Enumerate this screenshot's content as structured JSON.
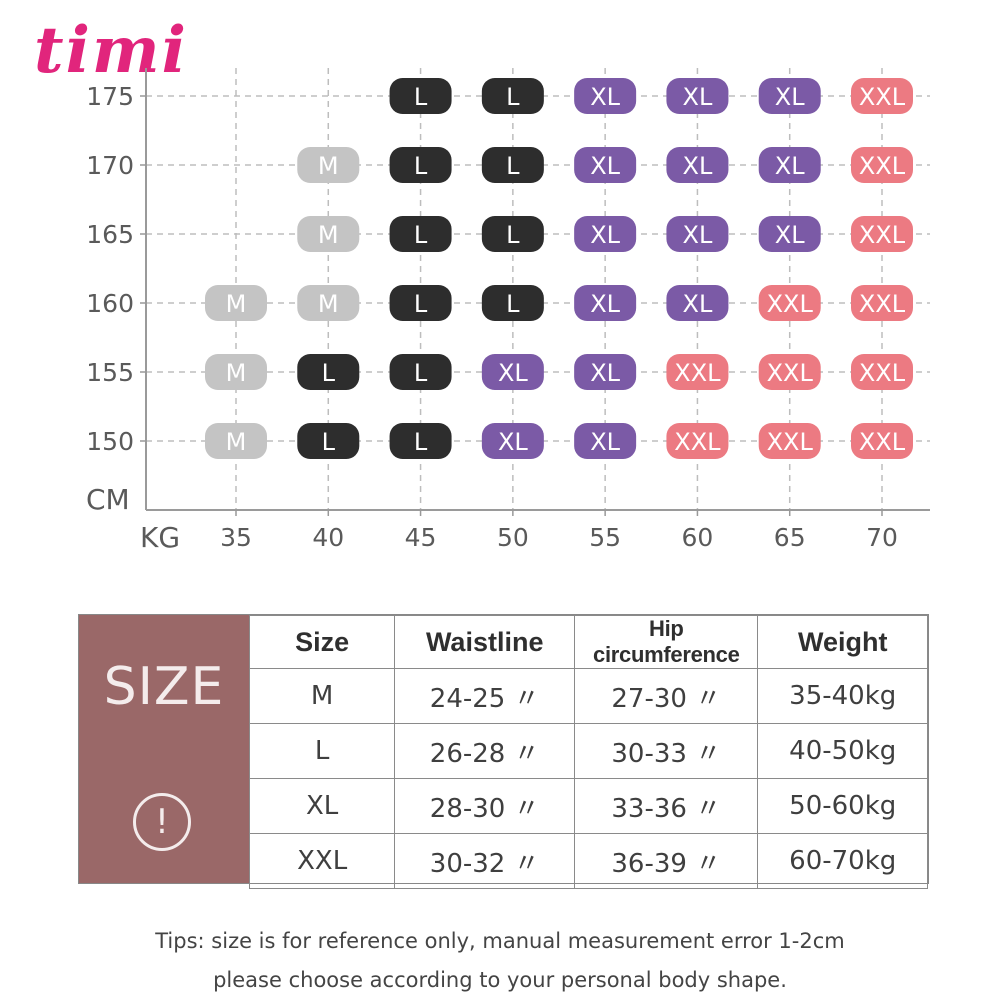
{
  "brand": {
    "logo_text": "timi",
    "color": "#e1257c"
  },
  "chart_data": {
    "type": "table",
    "y_unit": "CM",
    "x_unit": "KG",
    "y_values": [
      175,
      170,
      165,
      160,
      155,
      150
    ],
    "x_values": [
      35,
      40,
      45,
      50,
      55,
      60,
      65,
      70
    ],
    "size_colors": {
      "M": "#c4c4c4",
      "L": "#2d2d2d",
      "XL": "#7b5aa6",
      "XXL": "#ec7a82"
    },
    "cells": [
      {
        "cm": 175,
        "kg": 45,
        "size": "L"
      },
      {
        "cm": 175,
        "kg": 50,
        "size": "L"
      },
      {
        "cm": 175,
        "kg": 55,
        "size": "XL"
      },
      {
        "cm": 175,
        "kg": 60,
        "size": "XL"
      },
      {
        "cm": 175,
        "kg": 65,
        "size": "XL"
      },
      {
        "cm": 175,
        "kg": 70,
        "size": "XXL"
      },
      {
        "cm": 170,
        "kg": 40,
        "size": "M"
      },
      {
        "cm": 170,
        "kg": 45,
        "size": "L"
      },
      {
        "cm": 170,
        "kg": 50,
        "size": "L"
      },
      {
        "cm": 170,
        "kg": 55,
        "size": "XL"
      },
      {
        "cm": 170,
        "kg": 60,
        "size": "XL"
      },
      {
        "cm": 170,
        "kg": 65,
        "size": "XL"
      },
      {
        "cm": 170,
        "kg": 70,
        "size": "XXL"
      },
      {
        "cm": 165,
        "kg": 40,
        "size": "M"
      },
      {
        "cm": 165,
        "kg": 45,
        "size": "L"
      },
      {
        "cm": 165,
        "kg": 50,
        "size": "L"
      },
      {
        "cm": 165,
        "kg": 55,
        "size": "XL"
      },
      {
        "cm": 165,
        "kg": 60,
        "size": "XL"
      },
      {
        "cm": 165,
        "kg": 65,
        "size": "XL"
      },
      {
        "cm": 165,
        "kg": 70,
        "size": "XXL"
      },
      {
        "cm": 160,
        "kg": 35,
        "size": "M"
      },
      {
        "cm": 160,
        "kg": 40,
        "size": "M"
      },
      {
        "cm": 160,
        "kg": 45,
        "size": "L"
      },
      {
        "cm": 160,
        "kg": 50,
        "size": "L"
      },
      {
        "cm": 160,
        "kg": 55,
        "size": "XL"
      },
      {
        "cm": 160,
        "kg": 60,
        "size": "XL"
      },
      {
        "cm": 160,
        "kg": 65,
        "size": "XXL"
      },
      {
        "cm": 160,
        "kg": 70,
        "size": "XXL"
      },
      {
        "cm": 155,
        "kg": 35,
        "size": "M"
      },
      {
        "cm": 155,
        "kg": 40,
        "size": "L"
      },
      {
        "cm": 155,
        "kg": 45,
        "size": "L"
      },
      {
        "cm": 155,
        "kg": 50,
        "size": "XL"
      },
      {
        "cm": 155,
        "kg": 55,
        "size": "XL"
      },
      {
        "cm": 155,
        "kg": 60,
        "size": "XXL"
      },
      {
        "cm": 155,
        "kg": 65,
        "size": "XXL"
      },
      {
        "cm": 155,
        "kg": 70,
        "size": "XXL"
      },
      {
        "cm": 150,
        "kg": 35,
        "size": "M"
      },
      {
        "cm": 150,
        "kg": 40,
        "size": "L"
      },
      {
        "cm": 150,
        "kg": 45,
        "size": "L"
      },
      {
        "cm": 150,
        "kg": 50,
        "size": "XL"
      },
      {
        "cm": 150,
        "kg": 55,
        "size": "XL"
      },
      {
        "cm": 150,
        "kg": 60,
        "size": "XXL"
      },
      {
        "cm": 150,
        "kg": 65,
        "size": "XXL"
      },
      {
        "cm": 150,
        "kg": 70,
        "size": "XXL"
      }
    ]
  },
  "size_table": {
    "banner_title": "SIZE",
    "alert_symbol": "!",
    "headers": {
      "size": "Size",
      "waist": "Waistline",
      "hip": "Hip circumference",
      "weight": "Weight"
    },
    "rows": [
      {
        "size": "M",
        "waist": "24-25 〃",
        "hip": "27-30 〃",
        "weight": "35-40kg"
      },
      {
        "size": "L",
        "waist": "26-28 〃",
        "hip": "30-33 〃",
        "weight": "40-50kg"
      },
      {
        "size": "XL",
        "waist": "28-30 〃",
        "hip": "33-36 〃",
        "weight": "50-60kg"
      },
      {
        "size": "XXL",
        "waist": "30-32 〃",
        "hip": "36-39 〃",
        "weight": "60-70kg"
      }
    ]
  },
  "tips": {
    "line1": "Tips: size is for reference only, manual measurement error 1-2cm",
    "line2": "please choose according to your personal body shape."
  }
}
